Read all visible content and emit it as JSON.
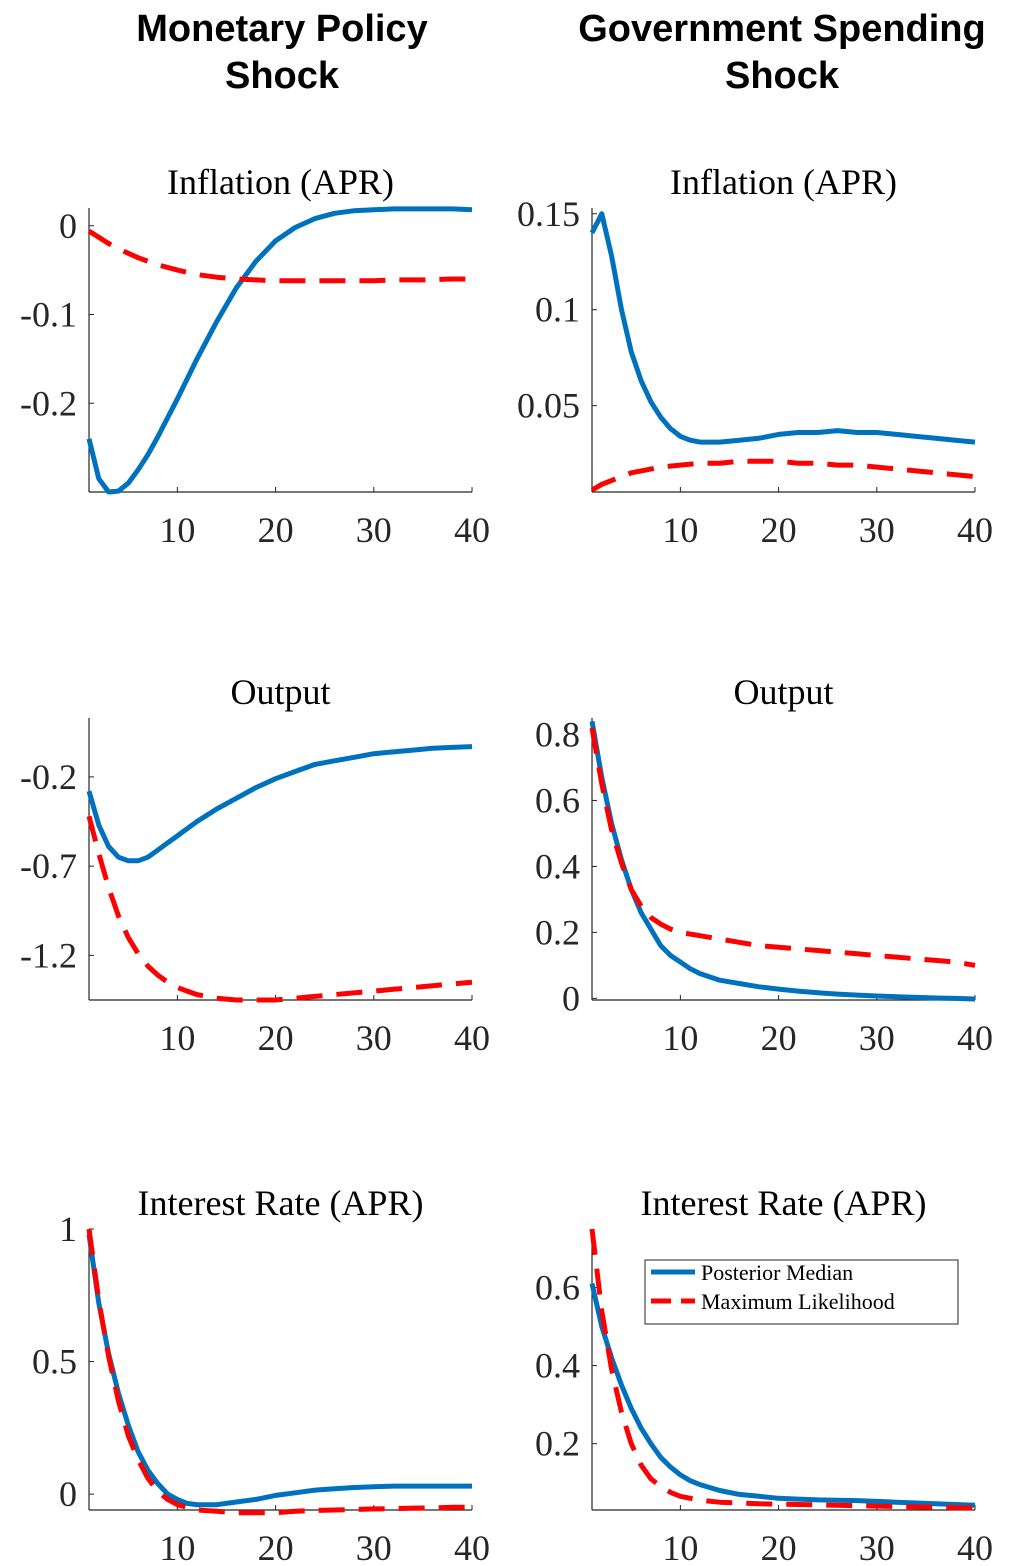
{
  "columns": [
    {
      "title_line1": "Monetary Policy",
      "title_line2": "Shock"
    },
    {
      "title_line1": "Government Spending",
      "title_line2": "Shock"
    }
  ],
  "colors": {
    "posterior": "#0072BD",
    "ml": "#FF0000"
  },
  "legend": {
    "placement": "top-right",
    "entries": [
      "Posterior Median",
      "Maximum Likelihood"
    ]
  },
  "chart_data": [
    {
      "type": "line",
      "title": "Inflation (APR)",
      "xlim": [
        1,
        40
      ],
      "ylim": [
        -0.3,
        0.02
      ],
      "xticks": [
        10,
        20,
        30,
        40
      ],
      "xticklabels": [
        "10",
        "20",
        "30",
        "40"
      ],
      "yticks": [
        0,
        -0.1,
        -0.2
      ],
      "yticklabels": [
        "0",
        "-0.1",
        "-0.2"
      ],
      "series": [
        {
          "name": "Posterior Median",
          "style": "solid",
          "x": [
            1,
            2,
            3,
            4,
            5,
            6,
            7,
            8,
            10,
            12,
            14,
            16,
            18,
            20,
            22,
            24,
            26,
            28,
            30,
            32,
            34,
            36,
            38,
            40
          ],
          "y": [
            -0.24,
            -0.285,
            -0.3,
            -0.299,
            -0.29,
            -0.275,
            -0.258,
            -0.238,
            -0.195,
            -0.15,
            -0.108,
            -0.07,
            -0.04,
            -0.017,
            -0.002,
            0.008,
            0.014,
            0.017,
            0.018,
            0.019,
            0.019,
            0.019,
            0.019,
            0.018
          ]
        },
        {
          "name": "Maximum Likelihood",
          "style": "dashed",
          "x": [
            1,
            2,
            3,
            4,
            5,
            6,
            8,
            10,
            12,
            14,
            16,
            18,
            20,
            22,
            25,
            28,
            30,
            32,
            35,
            38,
            40
          ],
          "y": [
            -0.006,
            -0.013,
            -0.02,
            -0.026,
            -0.031,
            -0.036,
            -0.044,
            -0.05,
            -0.055,
            -0.058,
            -0.06,
            -0.061,
            -0.062,
            -0.062,
            -0.062,
            -0.062,
            -0.062,
            -0.061,
            -0.061,
            -0.06,
            -0.06
          ]
        }
      ]
    },
    {
      "type": "line",
      "title": "Inflation (APR)",
      "xlim": [
        1,
        40
      ],
      "ylim": [
        0.005,
        0.153
      ],
      "xticks": [
        10,
        20,
        30,
        40
      ],
      "xticklabels": [
        "10",
        "20",
        "30",
        "40"
      ],
      "yticks": [
        0.15,
        0.1,
        0.05
      ],
      "yticklabels": [
        "0.15",
        "0.1",
        "0.05"
      ],
      "series": [
        {
          "name": "Posterior Median",
          "style": "solid",
          "x": [
            1,
            2,
            3,
            4,
            5,
            6,
            7,
            8,
            9,
            10,
            11,
            12,
            13,
            14,
            16,
            18,
            20,
            22,
            24,
            26,
            28,
            30,
            32,
            34,
            36,
            38,
            40
          ],
          "y": [
            0.14,
            0.15,
            0.128,
            0.1,
            0.078,
            0.063,
            0.052,
            0.044,
            0.038,
            0.034,
            0.032,
            0.031,
            0.031,
            0.031,
            0.032,
            0.033,
            0.035,
            0.036,
            0.036,
            0.037,
            0.036,
            0.036,
            0.035,
            0.034,
            0.033,
            0.032,
            0.031
          ]
        },
        {
          "name": "Maximum Likelihood",
          "style": "dashed",
          "x": [
            1,
            2,
            3,
            4,
            5,
            6,
            8,
            10,
            12,
            14,
            16,
            18,
            20,
            22,
            24,
            26,
            28,
            30,
            32,
            34,
            36,
            38,
            40
          ],
          "y": [
            0.006,
            0.009,
            0.011,
            0.013,
            0.015,
            0.016,
            0.018,
            0.019,
            0.02,
            0.02,
            0.021,
            0.021,
            0.021,
            0.02,
            0.02,
            0.019,
            0.019,
            0.018,
            0.017,
            0.016,
            0.015,
            0.014,
            0.013
          ]
        }
      ]
    },
    {
      "type": "line",
      "title": "Output",
      "xlim": [
        1,
        40
      ],
      "ylim": [
        -1.45,
        0.13
      ],
      "xticks": [
        10,
        20,
        30,
        40
      ],
      "xticklabels": [
        "10",
        "20",
        "30",
        "40"
      ],
      "yticks": [
        -0.2,
        -0.7,
        -1.2
      ],
      "yticklabels": [
        "-0.2",
        "-0.7",
        "-1.2"
      ],
      "series": [
        {
          "name": "Posterior Median",
          "style": "solid",
          "x": [
            1,
            2,
            3,
            4,
            5,
            6,
            7,
            8,
            9,
            10,
            12,
            14,
            16,
            18,
            20,
            22,
            24,
            26,
            28,
            30,
            32,
            34,
            36,
            38,
            40
          ],
          "y": [
            -0.28,
            -0.47,
            -0.59,
            -0.65,
            -0.67,
            -0.67,
            -0.65,
            -0.61,
            -0.57,
            -0.53,
            -0.45,
            -0.38,
            -0.32,
            -0.26,
            -0.21,
            -0.17,
            -0.13,
            -0.11,
            -0.09,
            -0.07,
            -0.06,
            -0.05,
            -0.04,
            -0.035,
            -0.03
          ]
        },
        {
          "name": "Maximum Likelihood",
          "style": "dashed",
          "x": [
            1,
            2,
            3,
            4,
            5,
            6,
            7,
            8,
            9,
            10,
            11,
            12,
            14,
            16,
            18,
            20,
            22,
            24,
            26,
            28,
            30,
            32,
            34,
            36,
            38,
            40
          ],
          "y": [
            -0.42,
            -0.63,
            -0.82,
            -0.98,
            -1.1,
            -1.19,
            -1.26,
            -1.31,
            -1.35,
            -1.38,
            -1.4,
            -1.42,
            -1.44,
            -1.45,
            -1.45,
            -1.45,
            -1.44,
            -1.43,
            -1.42,
            -1.41,
            -1.4,
            -1.39,
            -1.38,
            -1.37,
            -1.36,
            -1.35
          ]
        }
      ]
    },
    {
      "type": "line",
      "title": "Output",
      "xlim": [
        1,
        40
      ],
      "ylim": [
        -0.005,
        0.85
      ],
      "xticks": [
        10,
        20,
        30,
        40
      ],
      "xticklabels": [
        "10",
        "20",
        "30",
        "40"
      ],
      "yticks": [
        0.8,
        0.6,
        0.4,
        0.2,
        0
      ],
      "yticklabels": [
        "0.8",
        "0.6",
        "0.4",
        "0.2",
        "0"
      ],
      "series": [
        {
          "name": "Posterior Median",
          "style": "solid",
          "x": [
            1,
            2,
            3,
            4,
            5,
            6,
            7,
            8,
            9,
            10,
            11,
            12,
            14,
            16,
            18,
            20,
            22,
            24,
            26,
            28,
            30,
            32,
            34,
            36,
            38,
            40
          ],
          "y": [
            0.84,
            0.67,
            0.53,
            0.42,
            0.33,
            0.26,
            0.21,
            0.16,
            0.13,
            0.11,
            0.09,
            0.075,
            0.055,
            0.045,
            0.035,
            0.028,
            0.022,
            0.017,
            0.013,
            0.01,
            0.007,
            0.005,
            0.003,
            0.001,
            0.0,
            -0.002
          ]
        },
        {
          "name": "Maximum Likelihood",
          "style": "dashed",
          "x": [
            1,
            2,
            3,
            4,
            5,
            6,
            7,
            8,
            9,
            10,
            12,
            14,
            16,
            18,
            20,
            22,
            24,
            26,
            28,
            30,
            32,
            34,
            36,
            38,
            40
          ],
          "y": [
            0.82,
            0.65,
            0.51,
            0.41,
            0.33,
            0.28,
            0.245,
            0.225,
            0.21,
            0.2,
            0.19,
            0.18,
            0.17,
            0.16,
            0.155,
            0.15,
            0.145,
            0.14,
            0.135,
            0.13,
            0.125,
            0.12,
            0.115,
            0.11,
            0.1
          ]
        }
      ]
    },
    {
      "type": "line",
      "title": "Interest Rate (APR)",
      "xlim": [
        1,
        40
      ],
      "ylim": [
        -0.06,
        1.0
      ],
      "xticks": [
        10,
        20,
        30,
        40
      ],
      "xticklabels": [
        "10",
        "20",
        "30",
        "40"
      ],
      "yticks": [
        1,
        0.5,
        0
      ],
      "yticklabels": [
        "1",
        "0.5",
        "0"
      ],
      "series": [
        {
          "name": "Posterior Median",
          "style": "solid",
          "x": [
            1,
            2,
            3,
            4,
            5,
            6,
            7,
            8,
            9,
            10,
            11,
            12,
            13,
            14,
            16,
            18,
            20,
            22,
            24,
            26,
            28,
            30,
            32,
            34,
            36,
            38,
            40
          ],
          "y": [
            0.98,
            0.72,
            0.53,
            0.38,
            0.26,
            0.16,
            0.09,
            0.04,
            0.0,
            -0.02,
            -0.035,
            -0.04,
            -0.04,
            -0.04,
            -0.03,
            -0.02,
            -0.005,
            0.005,
            0.015,
            0.02,
            0.025,
            0.028,
            0.03,
            0.03,
            0.03,
            0.03,
            0.03
          ]
        },
        {
          "name": "Maximum Likelihood",
          "style": "dashed",
          "x": [
            1,
            2,
            3,
            4,
            5,
            6,
            7,
            8,
            9,
            10,
            11,
            12,
            14,
            16,
            18,
            20,
            22,
            24,
            26,
            28,
            30,
            32,
            34,
            36,
            38,
            40
          ],
          "y": [
            1.0,
            0.73,
            0.52,
            0.35,
            0.22,
            0.13,
            0.06,
            0.01,
            -0.02,
            -0.04,
            -0.05,
            -0.06,
            -0.065,
            -0.07,
            -0.07,
            -0.07,
            -0.065,
            -0.062,
            -0.06,
            -0.058,
            -0.056,
            -0.055,
            -0.053,
            -0.052,
            -0.05,
            -0.05
          ]
        }
      ]
    },
    {
      "type": "line",
      "title": "Interest Rate (APR)",
      "xlim": [
        1,
        40
      ],
      "ylim": [
        0.03,
        0.75
      ],
      "xticks": [
        10,
        20,
        30,
        40
      ],
      "xticklabels": [
        "10",
        "20",
        "30",
        "40"
      ],
      "yticks": [
        0.6,
        0.4,
        0.2
      ],
      "yticklabels": [
        "0.6",
        "0.4",
        "0.2"
      ],
      "series": [
        {
          "name": "Posterior Median",
          "style": "solid",
          "x": [
            1,
            2,
            3,
            4,
            5,
            6,
            7,
            8,
            9,
            10,
            11,
            12,
            14,
            16,
            18,
            20,
            22,
            24,
            26,
            28,
            30,
            32,
            34,
            36,
            38,
            40
          ],
          "y": [
            0.61,
            0.5,
            0.42,
            0.35,
            0.29,
            0.24,
            0.2,
            0.165,
            0.14,
            0.12,
            0.105,
            0.095,
            0.08,
            0.07,
            0.065,
            0.06,
            0.058,
            0.056,
            0.055,
            0.054,
            0.052,
            0.05,
            0.048,
            0.046,
            0.044,
            0.042
          ]
        },
        {
          "name": "Maximum Likelihood",
          "style": "dashed",
          "x": [
            1,
            2,
            3,
            4,
            5,
            6,
            7,
            8,
            9,
            10,
            11,
            12,
            14,
            16,
            18,
            20,
            22,
            24,
            26,
            28,
            30,
            32,
            34,
            36,
            38,
            40
          ],
          "y": [
            0.75,
            0.54,
            0.39,
            0.28,
            0.2,
            0.145,
            0.11,
            0.09,
            0.075,
            0.065,
            0.06,
            0.055,
            0.05,
            0.048,
            0.046,
            0.045,
            0.044,
            0.043,
            0.042,
            0.041,
            0.04,
            0.039,
            0.038,
            0.037,
            0.036,
            0.035
          ]
        }
      ]
    }
  ]
}
